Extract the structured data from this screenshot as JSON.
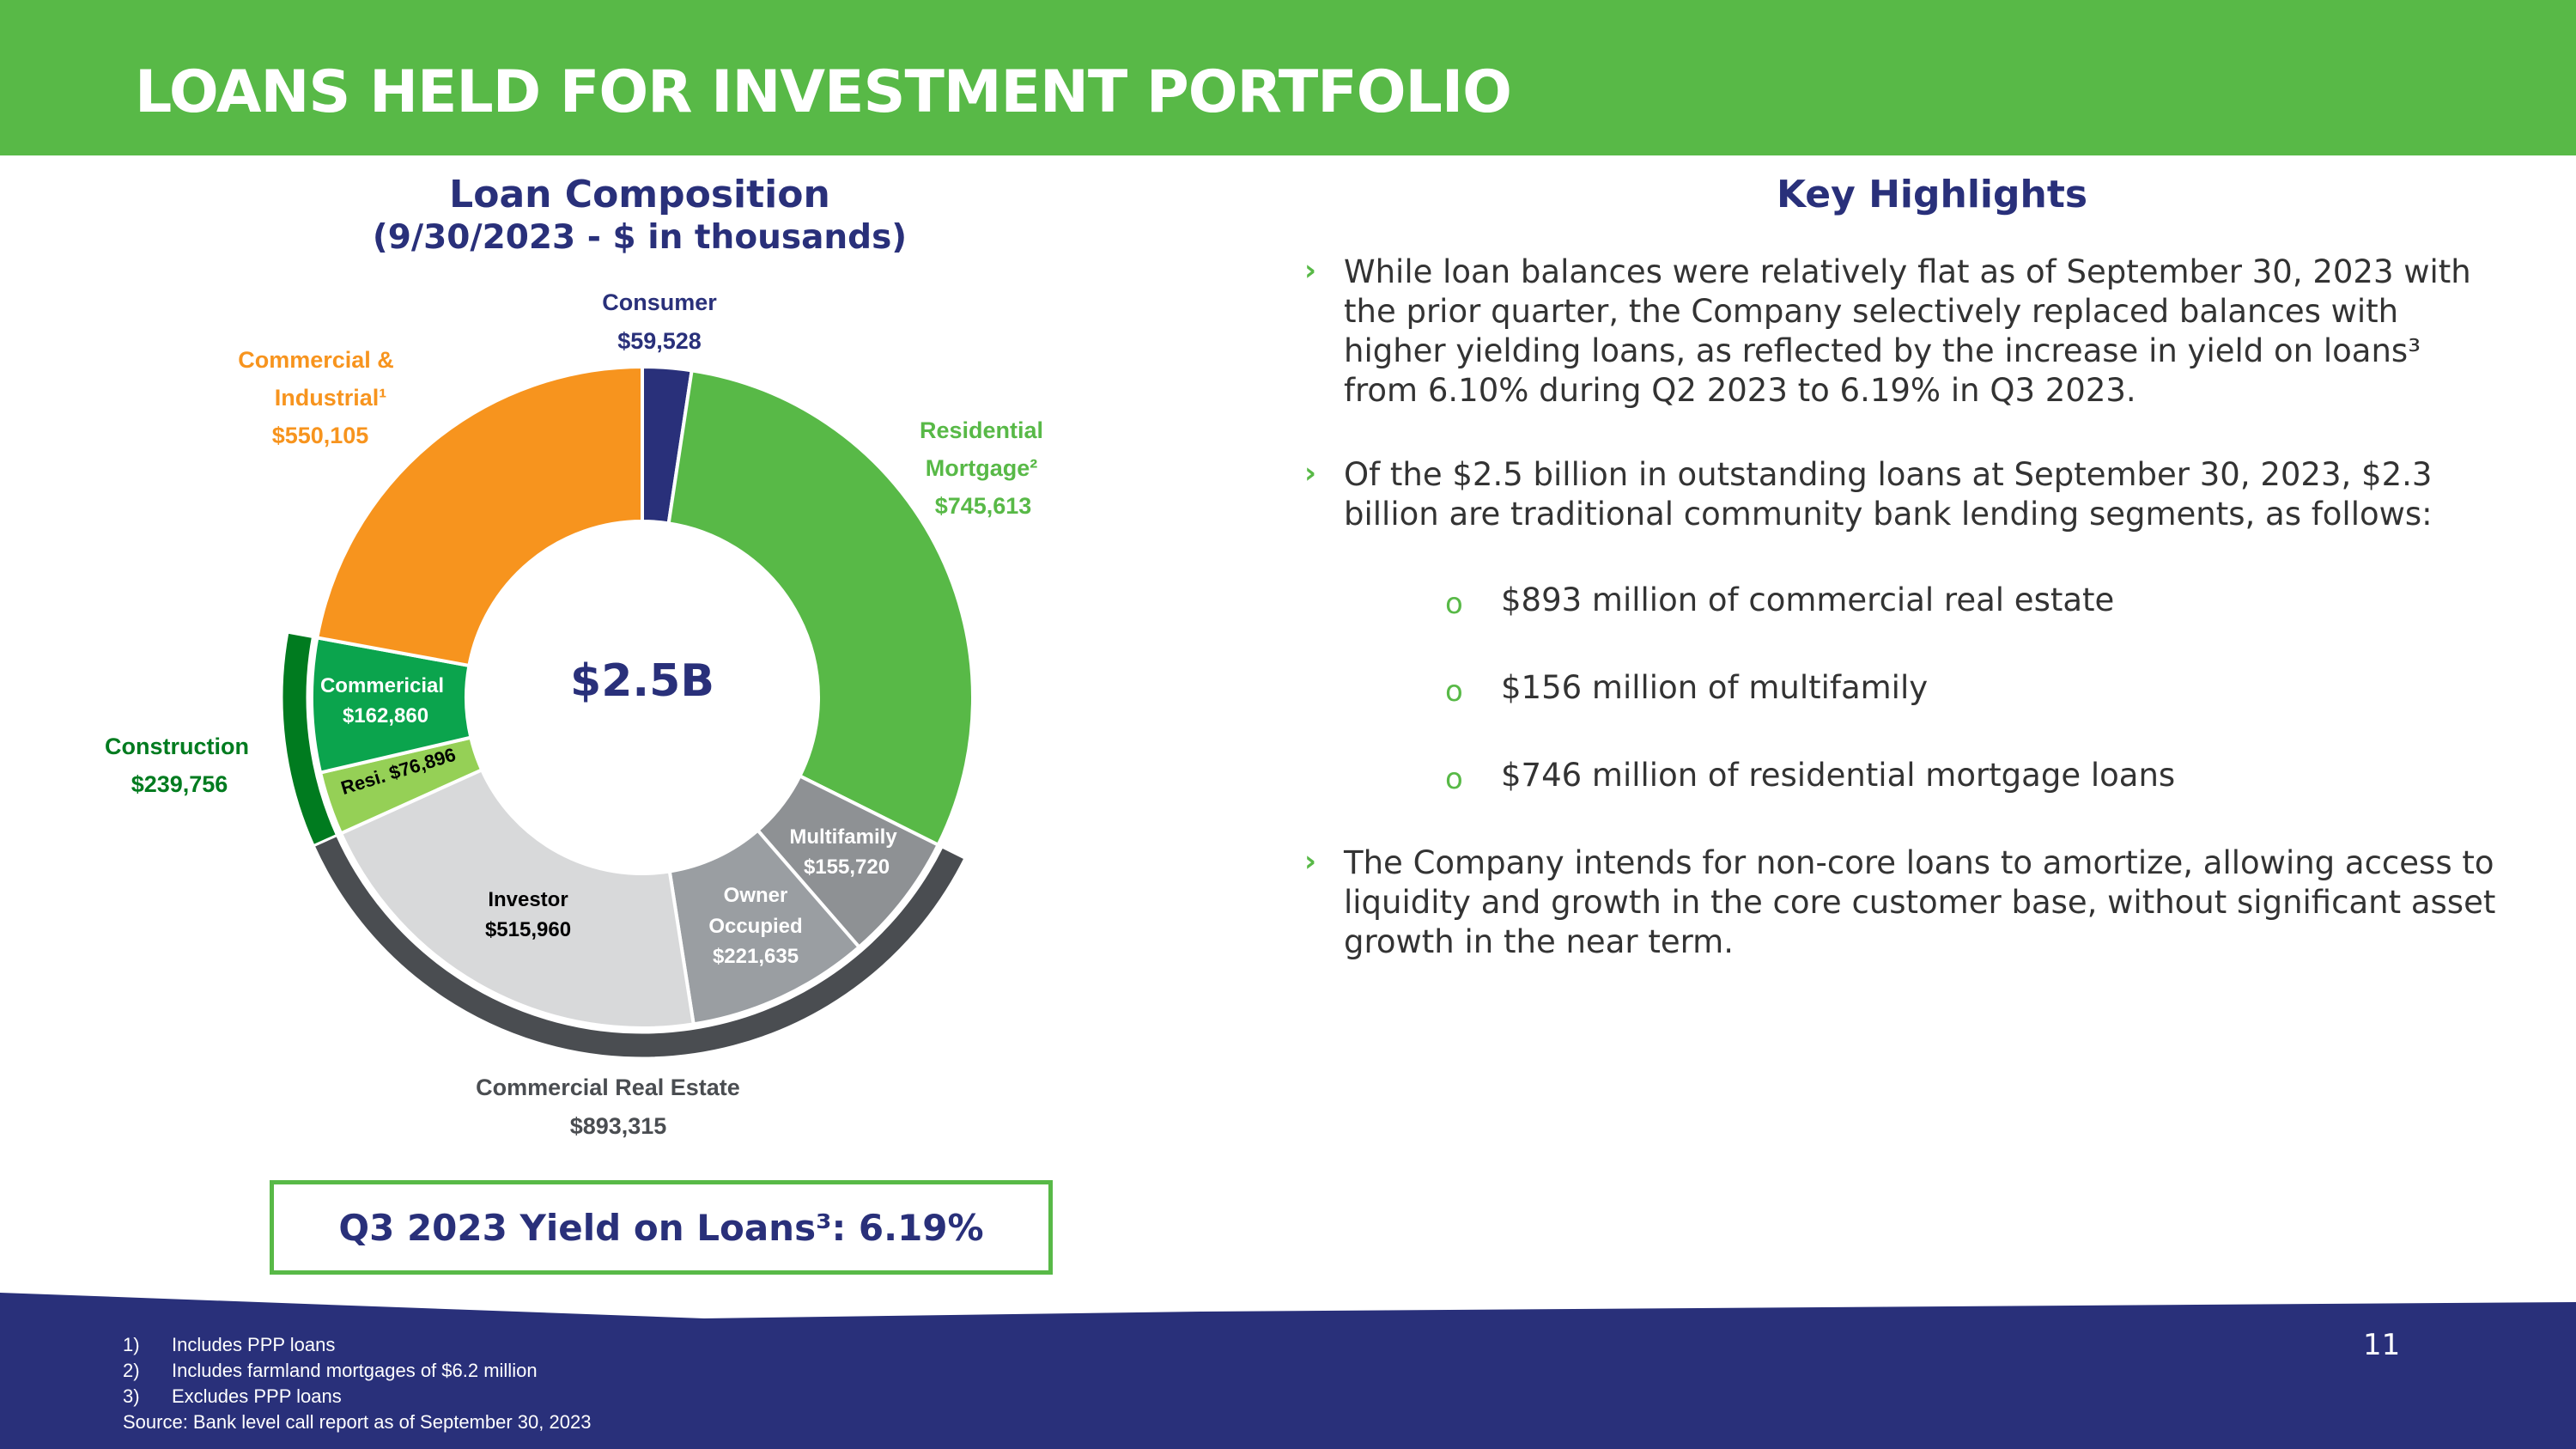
{
  "header": {
    "title": "LOANS HELD FOR INVESTMENT PORTFOLIO"
  },
  "chart_title": {
    "line1": "Loan Composition",
    "line2": "(9/30/2023 - $ in thousands)"
  },
  "chart_data": {
    "type": "pie",
    "title": "Loan Composition (9/30/2023 - $ in thousands)",
    "center_label": "$2.5B",
    "segments": [
      {
        "key": "consumer",
        "label": "Consumer",
        "value_label": "$59,528",
        "value": 59528,
        "color": "#29307a",
        "label_color": "#29307a"
      },
      {
        "key": "residential",
        "label": "Residential Mortgage²",
        "value_label": "$745,613",
        "value": 745613,
        "color": "#58b947",
        "label_color": "#58b947"
      },
      {
        "key": "multifamily",
        "label": "Multifamily",
        "value_label": "$155,720",
        "value": 155720,
        "color": "#8e9194",
        "label_color": "#ffffff"
      },
      {
        "key": "owner_occupied",
        "label": "Owner Occupied",
        "value_label": "$221,635",
        "value": 221635,
        "color": "#9a9ea2",
        "label_color": "#ffffff"
      },
      {
        "key": "investor",
        "label": "Investor",
        "value_label": "$515,960",
        "value": 515960,
        "color": "#d8d9da",
        "label_color": "#000000"
      },
      {
        "key": "resi_construction",
        "label": "Resi.",
        "value_label": "$76,896",
        "value": 76896,
        "color": "#95d056",
        "label_color": "#000000"
      },
      {
        "key": "commercial_construction",
        "label": "Commericial",
        "value_label": "$162,860",
        "value": 162860,
        "color": "#0ba44d",
        "label_color": "#ffffff"
      },
      {
        "key": "commercial_industrial",
        "label": "Commercial & Industrial¹",
        "value_label": "$550,105",
        "value": 550105,
        "color": "#f7941e",
        "label_color": "#f7941e"
      }
    ],
    "groups": [
      {
        "key": "commercial_real_estate",
        "label": "Commercial Real Estate",
        "value_label": "$893,315",
        "value": 893315,
        "members": [
          "multifamily",
          "owner_occupied",
          "investor"
        ],
        "color": "#4a4d51"
      },
      {
        "key": "construction",
        "label": "Construction",
        "value_label": "$239,756",
        "value": 239756,
        "members": [
          "resi_construction",
          "commercial_construction"
        ],
        "color": "#007b1f"
      }
    ]
  },
  "yield_box": {
    "text": "Q3 2023 Yield on Loans³: 6.19%"
  },
  "highlights": {
    "title": "Key Highlights",
    "bullets": [
      "While loan balances were relatively flat as of September 30, 2023 with the prior quarter, the Company selectively replaced balances with higher yielding loans, as reflected by the increase in yield on loans³ from 6.10% during Q2 2023 to 6.19% in Q3 2023.",
      "Of the $2.5 billion in outstanding loans at September 30, 2023, $2.3 billion are traditional community bank lending segments, as follows:",
      "The Company intends for non-core loans to amortize, allowing access to liquidity and growth in the core customer base, without significant asset growth in the near term."
    ],
    "sub_bullets": [
      "$893 million of commercial real estate",
      "$156 million of multifamily",
      "$746 million of residential mortgage loans"
    ],
    "arrow_glyph": "›",
    "sub_glyph": "o"
  },
  "footnotes": {
    "items": [
      {
        "num": "1)",
        "text": "Includes PPP loans"
      },
      {
        "num": "2)",
        "text": "Includes farmland mortgages of $6.2 million"
      },
      {
        "num": "3)",
        "text": "Excludes PPP loans"
      }
    ],
    "source": "Source: Bank level call report as of September 30, 2023"
  },
  "page_number": "11",
  "colors": {
    "green": "#58b947",
    "navy": "#29307a",
    "orange": "#f7941e"
  }
}
